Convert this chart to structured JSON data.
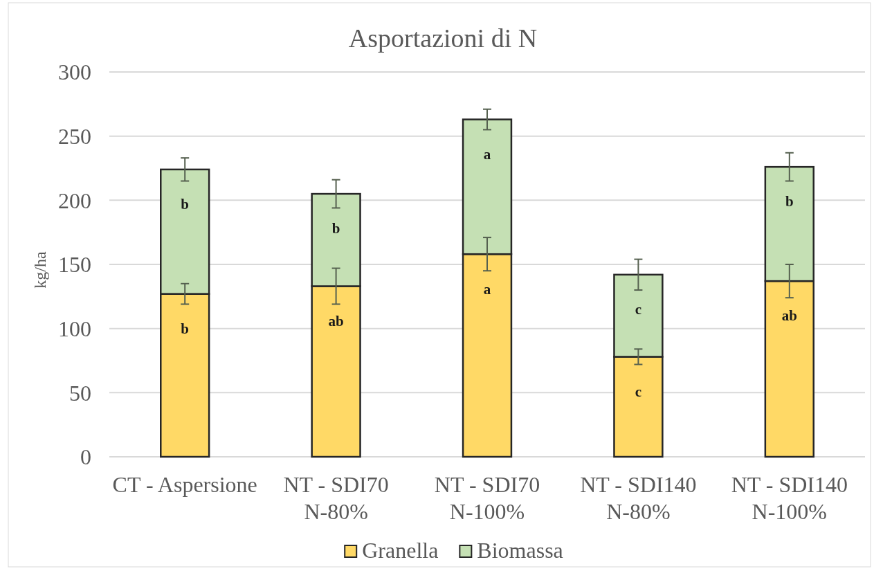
{
  "chart_data": {
    "type": "bar",
    "title": "Asportazioni di N",
    "ylabel": "kg/ha",
    "categories": [
      "CT - Aspersione",
      "NT - SDI70\nN-80%",
      "NT - SDI70\nN-100%",
      "NT - SDI140\nN-80%",
      "NT - SDI140\nN-100%"
    ],
    "series": [
      {
        "name": "Granella",
        "color": "#ffd966",
        "values": [
          127,
          133,
          158,
          78,
          137
        ],
        "errors": [
          8,
          14,
          13,
          6,
          13
        ],
        "value_labels": [
          "b",
          "ab",
          "a",
          "c",
          "ab"
        ]
      },
      {
        "name": "Biomassa",
        "color": "#c5e0b4",
        "values": [
          97,
          72,
          105,
          64,
          89
        ],
        "errors": [
          9,
          11,
          8,
          12,
          11
        ],
        "value_labels": [
          "b",
          "b",
          "a",
          "c",
          "b"
        ]
      }
    ],
    "stacked": true,
    "ylim": [
      0,
      300
    ],
    "yticks": [
      0,
      50,
      100,
      150,
      200,
      250,
      300
    ],
    "grid": "y",
    "legend": "bottom"
  }
}
